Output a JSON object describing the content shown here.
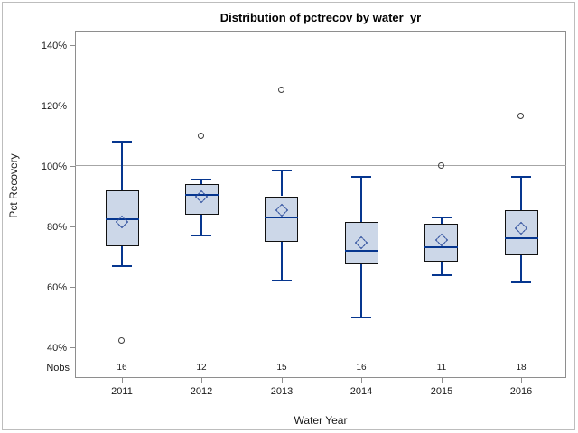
{
  "chart_data": {
    "type": "boxplot",
    "title": "Distribution of pctrecov by water_yr",
    "xlabel": "Water Year",
    "ylabel": "Pct Recovery",
    "nobs_label": "Nobs",
    "categories": [
      "2011",
      "2012",
      "2013",
      "2014",
      "2015",
      "2016"
    ],
    "y_ticks_values": [
      40,
      60,
      80,
      100,
      120,
      140
    ],
    "y_tick_suffix": "%",
    "ylim": [
      30,
      145
    ],
    "grid": "off",
    "legend": "none",
    "reference_line_y": 100,
    "series": [
      {
        "category": "2011",
        "nobs": 16,
        "whisker_low": 67,
        "q1": 73.5,
        "median": 82.5,
        "q3": 92,
        "whisker_high": 108,
        "mean": 81.5,
        "outliers": [
          42
        ]
      },
      {
        "category": "2012",
        "nobs": 12,
        "whisker_low": 77,
        "q1": 84,
        "median": 90.5,
        "q3": 94,
        "whisker_high": 95.5,
        "mean": 90,
        "outliers": [
          110
        ]
      },
      {
        "category": "2013",
        "nobs": 15,
        "whisker_low": 62,
        "q1": 75,
        "median": 83,
        "q3": 90,
        "whisker_high": 98.5,
        "mean": 85.5,
        "outliers": [
          125
        ]
      },
      {
        "category": "2014",
        "nobs": 16,
        "whisker_low": 50,
        "q1": 67.5,
        "median": 72,
        "q3": 81.5,
        "whisker_high": 96.5,
        "mean": 74.5,
        "outliers": []
      },
      {
        "category": "2015",
        "nobs": 11,
        "whisker_low": 64,
        "q1": 68.5,
        "median": 73,
        "q3": 81,
        "whisker_high": 83,
        "mean": 75.5,
        "outliers": [
          100
        ]
      },
      {
        "category": "2016",
        "nobs": 18,
        "whisker_low": 61.5,
        "q1": 70.5,
        "median": 76,
        "q3": 85.5,
        "whisker_high": 96.5,
        "mean": 79.5,
        "outliers": [
          116.5
        ]
      }
    ],
    "colors": {
      "box_fill": "#ccd7e8",
      "box_border": "#111111",
      "whisker": "#06368f",
      "median": "#06368f",
      "mean_marker": "#2a4b9b",
      "outlier": "#3f3f3f",
      "reference_line": "#a6a6a6",
      "axis": "#8e8e8e",
      "outer_border": "#bdbdbd",
      "text": "#1a1a1a"
    }
  }
}
